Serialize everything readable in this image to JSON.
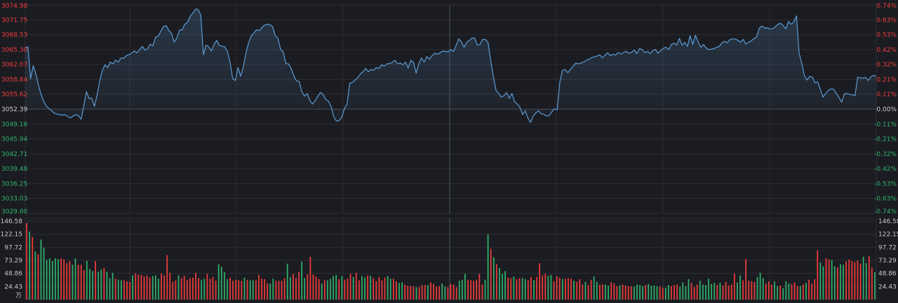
{
  "chart_data": [
    {
      "type": "area",
      "title": "",
      "xlabel": "",
      "ylabel": "",
      "ylim": [
        3029.8,
        3074.98
      ],
      "baseline": 3052.39,
      "y_ticks_left": [
        "3074.98",
        "3071.75",
        "3068.53",
        "3065.30",
        "3062.07",
        "3058.84",
        "3055.62",
        "3052.39",
        "3049.16",
        "3045.94",
        "3042.71",
        "3039.48",
        "3036.25",
        "3033.03",
        "3029.80"
      ],
      "y_ticks_right": [
        "0.74%",
        "0.63%",
        "0.53%",
        "0.42%",
        "0.32%",
        "0.21%",
        "0.11%",
        "0.00%",
        "-0.11%",
        "-0.21%",
        "-0.32%",
        "-0.42%",
        "-0.53%",
        "-0.63%",
        "-0.74%"
      ],
      "colors": {
        "line": "#5b9bd5",
        "up": "#f03c3c",
        "down": "#2fb36d",
        "neutral": "#d0d0d0",
        "grid": "#2c2e35"
      },
      "series": [
        {
          "values": [
            3065.7,
            3065.9,
            3059.0,
            3061.8,
            3060.0,
            3057.5,
            3055.5,
            3054.0,
            3053.0,
            3052.5,
            3052.0,
            3051.5,
            3051.3,
            3051.2,
            3051.1,
            3051.2,
            3050.8,
            3050.5,
            3050.9,
            3051.2,
            3051.0,
            3050.2,
            3053.0,
            3056.2,
            3054.7,
            3054.8,
            3053.0,
            3055.4,
            3058.5,
            3060.8,
            3062.0,
            3061.4,
            3062.6,
            3062.2,
            3063.0,
            3062.6,
            3063.5,
            3063.4,
            3064.0,
            3064.2,
            3064.5,
            3065.0,
            3064.6,
            3065.3,
            3066.0,
            3065.2,
            3065.5,
            3066.5,
            3066.1,
            3068.0,
            3068.2,
            3069.3,
            3070.3,
            3070.5,
            3069.4,
            3068.8,
            3066.9,
            3067.8,
            3069.5,
            3069.6,
            3070.8,
            3071.2,
            3072.5,
            3073.2,
            3074.1,
            3074.0,
            3072.8,
            3064.2,
            3066.3,
            3065.9,
            3065.0,
            3066.5,
            3067.3,
            3066.2,
            3066.0,
            3065.9,
            3064.9,
            3062.6,
            3059.0,
            3058.6,
            3061.4,
            3059.5,
            3061.6,
            3064.6,
            3066.8,
            3068.3,
            3068.9,
            3069.6,
            3069.4,
            3070.1,
            3070.6,
            3070.8,
            3070.7,
            3070.3,
            3068.3,
            3067.8,
            3065.4,
            3064.8,
            3062.3,
            3062.2,
            3061.2,
            3059.6,
            3058.5,
            3058.4,
            3056.2,
            3055.2,
            3055.8,
            3054.3,
            3053.5,
            3054.2,
            3055.2,
            3056.0,
            3055.6,
            3054.5,
            3054.1,
            3053.0,
            3050.8,
            3049.8,
            3049.9,
            3050.6,
            3052.5,
            3053.5,
            3058.0,
            3058.2,
            3058.7,
            3059.2,
            3060.0,
            3060.5,
            3061.2,
            3060.5,
            3061.0,
            3060.8,
            3061.4,
            3061.2,
            3062.0,
            3061.7,
            3062.2,
            3062.3,
            3062.5,
            3063.0,
            3062.2,
            3062.4,
            3062.0,
            3062.6,
            3061.3,
            3063.0,
            3062.5,
            3060.2,
            3062.3,
            3063.5,
            3062.6,
            3063.8,
            3063.2,
            3064.0,
            3064.5,
            3064.3,
            3064.6,
            3065.0,
            3064.9,
            3064.8,
            3065.3,
            3064.9,
            3066.2,
            3067.6,
            3067.0,
            3065.8,
            3066.9,
            3067.3,
            3067.8,
            3067.8,
            3066.3,
            3066.4,
            3067.5,
            3067.5,
            3066.9,
            3063.0,
            3059.6,
            3056.5,
            3055.8,
            3055.0,
            3055.3,
            3056.0,
            3054.7,
            3055.8,
            3054.0,
            3053.5,
            3052.8,
            3051.2,
            3052.0,
            3050.5,
            3049.5,
            3050.9,
            3051.6,
            3052.0,
            3051.4,
            3051.3,
            3050.9,
            3051.0,
            3051.8,
            3052.5,
            3052.2,
            3058.2,
            3060.8,
            3061.0,
            3060.3,
            3061.0,
            3061.7,
            3062.4,
            3062.2,
            3062.4,
            3062.6,
            3063.0,
            3063.2,
            3063.6,
            3063.7,
            3063.9,
            3064.2,
            3063.5,
            3064.1,
            3064.6,
            3064.0,
            3064.3,
            3064.1,
            3064.7,
            3064.3,
            3064.7,
            3064.9,
            3064.5,
            3064.7,
            3065.2,
            3064.4,
            3065.5,
            3065.3,
            3064.6,
            3064.9,
            3064.4,
            3065.1,
            3065.3,
            3064.5,
            3065.1,
            3065.6,
            3065.8,
            3065.3,
            3066.4,
            3066.7,
            3066.3,
            3067.7,
            3066.2,
            3066.9,
            3066.0,
            3068.3,
            3066.4,
            3068.4,
            3067.0,
            3065.8,
            3066.4,
            3065.7,
            3065.3,
            3065.4,
            3065.5,
            3065.8,
            3066.0,
            3066.8,
            3067.1,
            3066.8,
            3067.5,
            3067.6,
            3067.6,
            3067.3,
            3066.9,
            3067.5,
            3066.5,
            3066.9,
            3067.2,
            3067.7,
            3068.0,
            3069.9,
            3070.4,
            3070.0,
            3070.0,
            3069.8,
            3069.8,
            3070.2,
            3070.8,
            3071.0,
            3070.5,
            3069.8,
            3071.4,
            3070.8,
            3071.3,
            3072.6,
            3064.5,
            3062.3,
            3059.6,
            3058.7,
            3059.5,
            3059.3,
            3058.1,
            3058.3,
            3056.6,
            3055.0,
            3055.8,
            3056.5,
            3056.8,
            3056.7,
            3055.8,
            3054.9,
            3053.9,
            3055.7,
            3055.8,
            3055.6,
            3055.5,
            3055.3,
            3059.3,
            3059.2,
            3059.1,
            3059.3,
            3058.6,
            3059.4,
            3059.7,
            3059.5
          ]
        }
      ]
    },
    {
      "type": "bar",
      "title": "",
      "unit_label": "万",
      "ylim": [
        0,
        146.58
      ],
      "y_ticks": [
        "146.58",
        "122.15",
        "97.72",
        "73.29",
        "48.86",
        "24.43"
      ],
      "direction_codes": "u = red (up), d = green (down), n = white",
      "directions": "udududdddddduuuudduuuddduddudddudduuuduuuuuuddduuuuuuduuuuuuudduuuudddduuuuududduuuuudduuuudduuudduuuuududddduduuuduudduduuuuudduudduuuuduuuduuuudduuuuddduuuuuuddududdduuduudduuduuuudduuuduuuduuuduudduudduuuduuuuddddudddduudduuudddduuudddddduduuuuudduuuuuddduuudduddduuududuuuudduuddudduuuuuudduuddduduudnu",
      "values": [
        143,
        127,
        117,
        90,
        85,
        112,
        97,
        74,
        77,
        72,
        77,
        75,
        77,
        75,
        68,
        72,
        65,
        77,
        65,
        65,
        55,
        72,
        57,
        53,
        72,
        52,
        56,
        59,
        52,
        40,
        50,
        39,
        37,
        36,
        36,
        34,
        33,
        45,
        49,
        46,
        46,
        43,
        45,
        41,
        44,
        45,
        39,
        49,
        45,
        83,
        50,
        33,
        36,
        45,
        40,
        44,
        37,
        40,
        41,
        50,
        40,
        37,
        39,
        48,
        39,
        42,
        35,
        66,
        61,
        51,
        38,
        41,
        35,
        37,
        36,
        35,
        41,
        37,
        36,
        36,
        36,
        46,
        39,
        38,
        30,
        30,
        39,
        35,
        35,
        35,
        40,
        67,
        42,
        48,
        40,
        52,
        71,
        40,
        47,
        80,
        47,
        43,
        38,
        30,
        36,
        36,
        39,
        44,
        46,
        38,
        44,
        37,
        39,
        48,
        42,
        50,
        36,
        44,
        41,
        45,
        44,
        40,
        34,
        42,
        36,
        41,
        44,
        39,
        39,
        34,
        31,
        32,
        28,
        26,
        25,
        24,
        23,
        23,
        27,
        27,
        27,
        32,
        29,
        24,
        25,
        30,
        24,
        23,
        29,
        28,
        23,
        35,
        37,
        48,
        37,
        36,
        35,
        37,
        48,
        28,
        37,
        122,
        95,
        79,
        66,
        59,
        48,
        53,
        41,
        40,
        43,
        38,
        40,
        40,
        38,
        36,
        42,
        36,
        42,
        68,
        45,
        48,
        44,
        46,
        34,
        44,
        41,
        38,
        39,
        40,
        39,
        35,
        33,
        38,
        28,
        33,
        27,
        37,
        43,
        33,
        28,
        28,
        28,
        26,
        32,
        30,
        25,
        26,
        28,
        26,
        25,
        25,
        24,
        28,
        27,
        25,
        27,
        29,
        26,
        26,
        25,
        24,
        22,
        22,
        27,
        25,
        27,
        28,
        24,
        32,
        25,
        38,
        31,
        23,
        28,
        35,
        28,
        27,
        39,
        29,
        31,
        27,
        31,
        26,
        33,
        26,
        28,
        48,
        32,
        45,
        36,
        76,
        35,
        34,
        33,
        42,
        50,
        40,
        30,
        34,
        28,
        34,
        25,
        26,
        21,
        34,
        30,
        29,
        32,
        25,
        25,
        28,
        31,
        37,
        30,
        38,
        92,
        69,
        62,
        77,
        75,
        74,
        62,
        60,
        66,
        65,
        71,
        75,
        72,
        70,
        73,
        67,
        80,
        68,
        81,
        60,
        51
      ]
    }
  ]
}
